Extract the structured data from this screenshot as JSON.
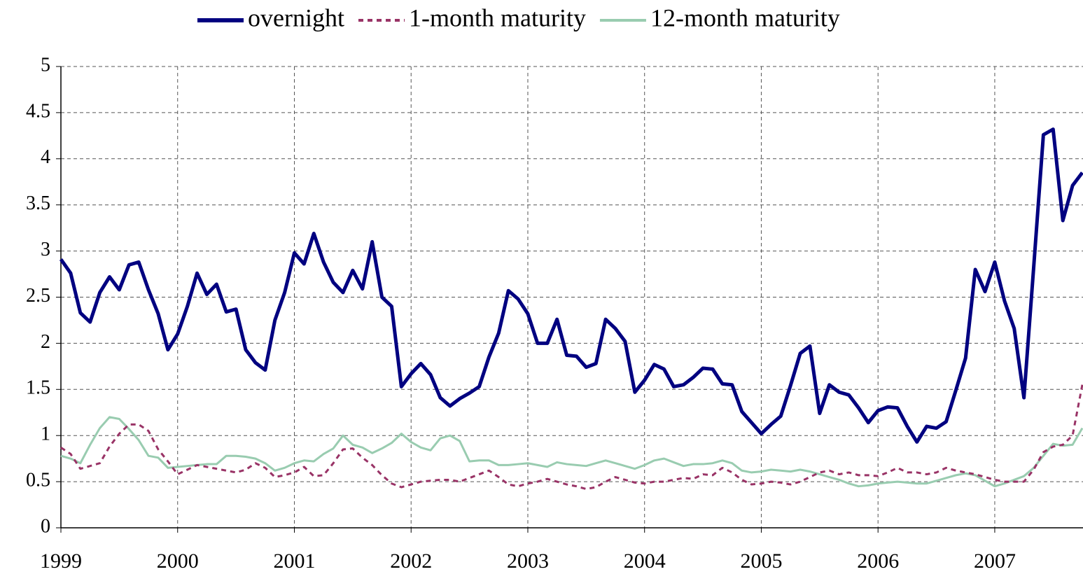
{
  "chart_data": {
    "type": "line",
    "categories": [
      "1999",
      null,
      null,
      null,
      null,
      null,
      null,
      null,
      null,
      null,
      null,
      null,
      "2000",
      null,
      null,
      null,
      null,
      null,
      null,
      null,
      null,
      null,
      null,
      null,
      "2001",
      null,
      null,
      null,
      null,
      null,
      null,
      null,
      null,
      null,
      null,
      null,
      "2002",
      null,
      null,
      null,
      null,
      null,
      null,
      null,
      null,
      null,
      null,
      null,
      "2003",
      null,
      null,
      null,
      null,
      null,
      null,
      null,
      null,
      null,
      null,
      null,
      "2004",
      null,
      null,
      null,
      null,
      null,
      null,
      null,
      null,
      null,
      null,
      null,
      "2005",
      null,
      null,
      null,
      null,
      null,
      null,
      null,
      null,
      null,
      null,
      null,
      "2006",
      null,
      null,
      null,
      null,
      null,
      null,
      null,
      null,
      null,
      null,
      null,
      "2007",
      null,
      null,
      null,
      null,
      null,
      null,
      null,
      null,
      null
    ],
    "series": [
      {
        "name": "overnight",
        "color": "#000080",
        "dash": false,
        "width": 5,
        "values": [
          2.91,
          2.76,
          2.33,
          2.23,
          2.55,
          2.72,
          2.58,
          2.85,
          2.88,
          2.58,
          2.32,
          1.93,
          2.1,
          2.4,
          2.76,
          2.53,
          2.64,
          2.34,
          2.37,
          1.93,
          1.79,
          1.71,
          2.25,
          2.55,
          2.98,
          2.86,
          3.19,
          2.88,
          2.66,
          2.55,
          2.79,
          2.59,
          3.1,
          2.5,
          2.4,
          1.53,
          1.67,
          1.78,
          1.66,
          1.41,
          1.32,
          1.4,
          1.46,
          1.53,
          1.85,
          2.11,
          2.57,
          2.48,
          2.32,
          2.0,
          2.0,
          2.26,
          1.87,
          1.86,
          1.74,
          1.78,
          2.26,
          2.16,
          2.02,
          1.47,
          1.6,
          1.77,
          1.72,
          1.53,
          1.55,
          1.63,
          1.73,
          1.72,
          1.56,
          1.55,
          1.26,
          1.14,
          1.02,
          1.12,
          1.21,
          1.54,
          1.89,
          1.97,
          1.24,
          1.55,
          1.47,
          1.44,
          1.3,
          1.14,
          1.27,
          1.31,
          1.3,
          1.1,
          0.93,
          1.1,
          1.08,
          1.15,
          1.49,
          1.84,
          2.8,
          2.56,
          2.88,
          2.46,
          2.16,
          1.41,
          2.82,
          4.26,
          4.32,
          3.33,
          3.71,
          3.85
        ]
      },
      {
        "name": "1-month maturity",
        "color": "#993366",
        "dash": true,
        "width": 3,
        "values": [
          0.87,
          0.8,
          0.64,
          0.67,
          0.7,
          0.88,
          1.02,
          1.12,
          1.12,
          1.05,
          0.85,
          0.72,
          0.58,
          0.63,
          0.68,
          0.66,
          0.64,
          0.62,
          0.6,
          0.63,
          0.7,
          0.65,
          0.55,
          0.57,
          0.6,
          0.66,
          0.56,
          0.57,
          0.7,
          0.85,
          0.86,
          0.76,
          0.68,
          0.57,
          0.48,
          0.44,
          0.47,
          0.5,
          0.51,
          0.52,
          0.52,
          0.5,
          0.54,
          0.58,
          0.62,
          0.55,
          0.47,
          0.45,
          0.48,
          0.5,
          0.53,
          0.5,
          0.47,
          0.45,
          0.42,
          0.44,
          0.5,
          0.55,
          0.52,
          0.49,
          0.48,
          0.5,
          0.5,
          0.52,
          0.54,
          0.53,
          0.58,
          0.57,
          0.65,
          0.6,
          0.52,
          0.47,
          0.48,
          0.5,
          0.49,
          0.47,
          0.5,
          0.55,
          0.6,
          0.62,
          0.58,
          0.6,
          0.57,
          0.57,
          0.56,
          0.6,
          0.65,
          0.6,
          0.6,
          0.58,
          0.6,
          0.65,
          0.62,
          0.6,
          0.58,
          0.55,
          0.52,
          0.5,
          0.5,
          0.5,
          0.63,
          0.82,
          0.88,
          0.9,
          1.0,
          1.55
        ]
      },
      {
        "name": "12-month maturity",
        "color": "#99ccb0",
        "dash": false,
        "width": 3,
        "values": [
          0.78,
          0.75,
          0.7,
          0.9,
          1.08,
          1.2,
          1.18,
          1.07,
          0.95,
          0.78,
          0.76,
          0.65,
          0.66,
          0.67,
          0.68,
          0.69,
          0.69,
          0.78,
          0.78,
          0.77,
          0.75,
          0.7,
          0.62,
          0.65,
          0.7,
          0.73,
          0.72,
          0.8,
          0.86,
          1.0,
          0.9,
          0.87,
          0.81,
          0.86,
          0.92,
          1.02,
          0.93,
          0.87,
          0.84,
          0.97,
          1.0,
          0.94,
          0.72,
          0.73,
          0.73,
          0.68,
          0.68,
          0.69,
          0.7,
          0.68,
          0.66,
          0.71,
          0.69,
          0.68,
          0.67,
          0.7,
          0.73,
          0.7,
          0.67,
          0.64,
          0.68,
          0.73,
          0.75,
          0.71,
          0.67,
          0.69,
          0.69,
          0.7,
          0.73,
          0.7,
          0.62,
          0.6,
          0.61,
          0.63,
          0.62,
          0.61,
          0.63,
          0.61,
          0.58,
          0.55,
          0.52,
          0.48,
          0.45,
          0.46,
          0.48,
          0.49,
          0.5,
          0.49,
          0.48,
          0.48,
          0.51,
          0.54,
          0.57,
          0.59,
          0.57,
          0.51,
          0.45,
          0.48,
          0.52,
          0.56,
          0.65,
          0.78,
          0.91,
          0.89,
          0.9,
          1.08
        ]
      }
    ],
    "ylim": [
      0,
      5
    ],
    "yticks": [
      0,
      0.5,
      1,
      1.5,
      2,
      2.5,
      3,
      3.5,
      4,
      4.5,
      5
    ],
    "grid": true,
    "legend": "top"
  }
}
